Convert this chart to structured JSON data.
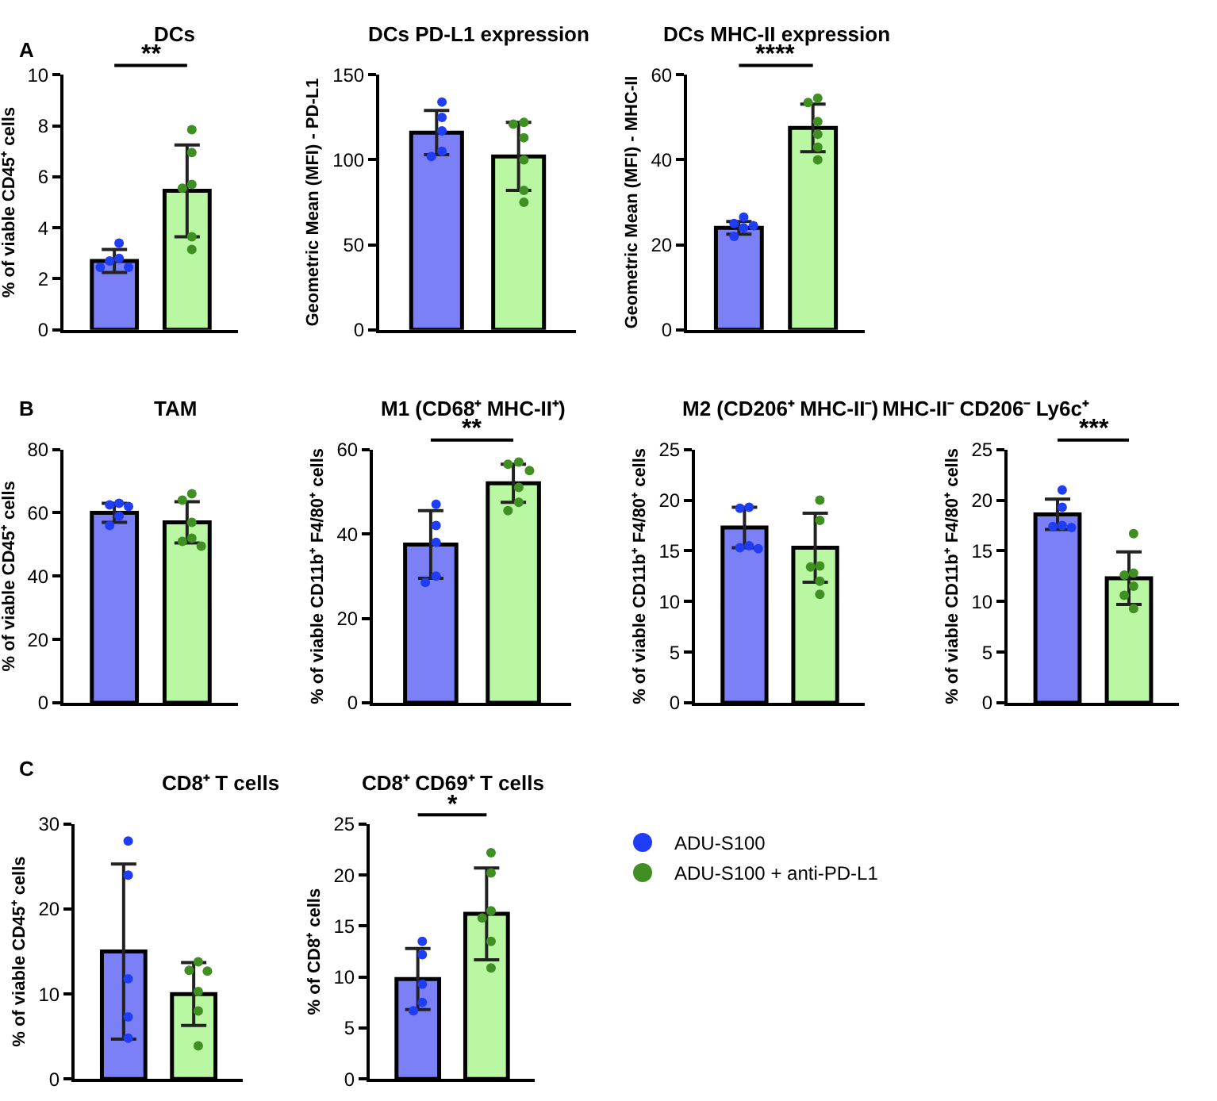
{
  "chart_data": [
    {
      "type": "bar",
      "title": "DCs",
      "ylabel": "% of viable CD45⁺ cells",
      "categories": [
        null,
        null
      ],
      "ylim": [
        0,
        10
      ],
      "yticks": [
        0,
        2,
        4,
        6,
        8,
        10
      ],
      "tick_labels": "y",
      "grid": false,
      "marker": "circle",
      "annotations": [
        "A",
        "**"
      ],
      "series": [
        {
          "type": "bar",
          "values": [
            2.7,
            5.45
          ],
          "errors": [
            0.45,
            1.8
          ],
          "colors": [
            "#7b80f7",
            "#b9f7a3"
          ]
        },
        {
          "type": "scatter",
          "color": "#1f3df5",
          "values": [
            3.4,
            null
          ]
        },
        {
          "type": "scatter",
          "color": "#1f3df5",
          "values": [
            2.8,
            null
          ]
        },
        {
          "type": "scatter",
          "color": "#1f3df5",
          "values": [
            2.7,
            null
          ]
        },
        {
          "type": "scatter",
          "color": "#1f3df5",
          "values": [
            2.45,
            null
          ]
        },
        {
          "type": "scatter",
          "color": "#1f3df5",
          "values": [
            2.45,
            null
          ]
        },
        {
          "type": "scatter",
          "color": "#3f8f22",
          "values": [
            null,
            7.85
          ]
        },
        {
          "type": "scatter",
          "color": "#3f8f22",
          "values": [
            null,
            6.95
          ]
        },
        {
          "type": "scatter",
          "color": "#3f8f22",
          "values": [
            null,
            5.7
          ]
        },
        {
          "type": "scatter",
          "color": "#3f8f22",
          "values": [
            null,
            5.55
          ]
        },
        {
          "type": "scatter",
          "color": "#3f8f22",
          "values": [
            null,
            3.65
          ]
        },
        {
          "type": "scatter",
          "color": "#3f8f22",
          "values": [
            null,
            3.15
          ]
        }
      ]
    },
    {
      "type": "bar",
      "title": "DCs PD-L1 expression",
      "ylabel": "Geometric Mean (MFI) - PD-L1",
      "categories": [
        null,
        null
      ],
      "ylim": [
        0,
        150
      ],
      "yticks": [
        0,
        50,
        100,
        150
      ],
      "tick_labels": "y",
      "grid": false,
      "marker": "circle",
      "series": [
        {
          "type": "bar",
          "values": [
            116,
            102
          ],
          "errors": [
            13,
            20
          ],
          "colors": [
            "#7b80f7",
            "#b9f7a3"
          ]
        },
        {
          "type": "scatter",
          "color": "#1f3df5",
          "values": [
            134,
            null
          ]
        },
        {
          "type": "scatter",
          "color": "#1f3df5",
          "values": [
            125,
            null
          ]
        },
        {
          "type": "scatter",
          "color": "#1f3df5",
          "values": [
            117,
            null
          ]
        },
        {
          "type": "scatter",
          "color": "#1f3df5",
          "values": [
            105,
            null
          ]
        },
        {
          "type": "scatter",
          "color": "#1f3df5",
          "values": [
            102,
            null
          ]
        },
        {
          "type": "scatter",
          "color": "#3f8f22",
          "values": [
            null,
            122
          ]
        },
        {
          "type": "scatter",
          "color": "#3f8f22",
          "values": [
            null,
            121
          ]
        },
        {
          "type": "scatter",
          "color": "#3f8f22",
          "values": [
            null,
            113
          ]
        },
        {
          "type": "scatter",
          "color": "#3f8f22",
          "values": [
            null,
            100
          ]
        },
        {
          "type": "scatter",
          "color": "#3f8f22",
          "values": [
            null,
            82
          ]
        },
        {
          "type": "scatter",
          "color": "#3f8f22",
          "values": [
            null,
            75
          ]
        }
      ]
    },
    {
      "type": "bar",
      "title": "DCs MHC-II expression",
      "ylabel": "Geometric Mean (MFI) - MHC-II",
      "categories": [
        null,
        null
      ],
      "ylim": [
        0,
        60
      ],
      "yticks": [
        0,
        20,
        40,
        60
      ],
      "tick_labels": "y",
      "grid": false,
      "marker": "circle",
      "annotations": [
        "****"
      ],
      "series": [
        {
          "type": "bar",
          "values": [
            24,
            47.5
          ],
          "errors": [
            1.5,
            5.6
          ],
          "colors": [
            "#7b80f7",
            "#b9f7a3"
          ]
        },
        {
          "type": "scatter",
          "color": "#1f3df5",
          "values": [
            26.5,
            null
          ]
        },
        {
          "type": "scatter",
          "color": "#1f3df5",
          "values": [
            25,
            null
          ]
        },
        {
          "type": "scatter",
          "color": "#1f3df5",
          "values": [
            24.5,
            null
          ]
        },
        {
          "type": "scatter",
          "color": "#1f3df5",
          "values": [
            24,
            null
          ]
        },
        {
          "type": "scatter",
          "color": "#1f3df5",
          "values": [
            22,
            null
          ]
        },
        {
          "type": "scatter",
          "color": "#3f8f22",
          "values": [
            null,
            54.5
          ]
        },
        {
          "type": "scatter",
          "color": "#3f8f22",
          "values": [
            null,
            53.5
          ]
        },
        {
          "type": "scatter",
          "color": "#3f8f22",
          "values": [
            null,
            49
          ]
        },
        {
          "type": "scatter",
          "color": "#3f8f22",
          "values": [
            null,
            46
          ]
        },
        {
          "type": "scatter",
          "color": "#3f8f22",
          "values": [
            null,
            43
          ]
        },
        {
          "type": "scatter",
          "color": "#3f8f22",
          "values": [
            null,
            40
          ]
        }
      ]
    },
    {
      "type": "bar",
      "title": "TAM",
      "ylabel": "% of viable CD45⁺ cells",
      "categories": [
        null,
        null
      ],
      "ylim": [
        0,
        80
      ],
      "yticks": [
        0,
        20,
        40,
        60,
        80
      ],
      "tick_labels": "y",
      "grid": false,
      "marker": "circle",
      "annotations": [
        "B"
      ],
      "series": [
        {
          "type": "bar",
          "values": [
            60,
            57
          ],
          "errors": [
            3,
            6.5
          ],
          "colors": [
            "#7b80f7",
            "#b9f7a3"
          ]
        },
        {
          "type": "scatter",
          "color": "#1f3df5",
          "values": [
            63,
            null
          ]
        },
        {
          "type": "scatter",
          "color": "#1f3df5",
          "values": [
            62.5,
            null
          ]
        },
        {
          "type": "scatter",
          "color": "#1f3df5",
          "values": [
            62,
            null
          ]
        },
        {
          "type": "scatter",
          "color": "#1f3df5",
          "values": [
            59,
            null
          ]
        },
        {
          "type": "scatter",
          "color": "#1f3df5",
          "values": [
            56,
            null
          ]
        },
        {
          "type": "scatter",
          "color": "#3f8f22",
          "values": [
            null,
            66
          ]
        },
        {
          "type": "scatter",
          "color": "#3f8f22",
          "values": [
            null,
            64
          ]
        },
        {
          "type": "scatter",
          "color": "#3f8f22",
          "values": [
            null,
            57
          ]
        },
        {
          "type": "scatter",
          "color": "#3f8f22",
          "values": [
            null,
            52
          ]
        },
        {
          "type": "scatter",
          "color": "#3f8f22",
          "values": [
            null,
            51
          ]
        },
        {
          "type": "scatter",
          "color": "#3f8f22",
          "values": [
            null,
            49.5
          ]
        }
      ]
    },
    {
      "type": "bar",
      "title": "M1 (CD68⁺ MHC-II⁺)",
      "ylabel": "% of viable CD11b⁺ F4/80⁺ cells",
      "categories": [
        null,
        null
      ],
      "ylim": [
        0,
        60
      ],
      "yticks": [
        0,
        20,
        40,
        60
      ],
      "tick_labels": "y",
      "grid": false,
      "marker": "circle",
      "annotations": [
        "**"
      ],
      "series": [
        {
          "type": "bar",
          "values": [
            37.5,
            52
          ],
          "errors": [
            8,
            4.5
          ],
          "colors": [
            "#7b80f7",
            "#b9f7a3"
          ]
        },
        {
          "type": "scatter",
          "color": "#1f3df5",
          "values": [
            47,
            null
          ]
        },
        {
          "type": "scatter",
          "color": "#1f3df5",
          "values": [
            42,
            null
          ]
        },
        {
          "type": "scatter",
          "color": "#1f3df5",
          "values": [
            38,
            null
          ]
        },
        {
          "type": "scatter",
          "color": "#1f3df5",
          "values": [
            30,
            null
          ]
        },
        {
          "type": "scatter",
          "color": "#1f3df5",
          "values": [
            28.5,
            null
          ]
        },
        {
          "type": "scatter",
          "color": "#3f8f22",
          "values": [
            null,
            57
          ]
        },
        {
          "type": "scatter",
          "color": "#3f8f22",
          "values": [
            null,
            56.5
          ]
        },
        {
          "type": "scatter",
          "color": "#3f8f22",
          "values": [
            null,
            55
          ]
        },
        {
          "type": "scatter",
          "color": "#3f8f22",
          "values": [
            null,
            51
          ]
        },
        {
          "type": "scatter",
          "color": "#3f8f22",
          "values": [
            null,
            47.5
          ]
        },
        {
          "type": "scatter",
          "color": "#3f8f22",
          "values": [
            null,
            45.5
          ]
        }
      ]
    },
    {
      "type": "bar",
      "title": "M2 (CD206⁺ MHC-II⁻)",
      "ylabel": "% of viable CD11b⁺ F4/80⁺ cells",
      "categories": [
        null,
        null
      ],
      "ylim": [
        0,
        25
      ],
      "yticks": [
        0,
        5,
        10,
        15,
        20,
        25
      ],
      "tick_labels": "y",
      "grid": false,
      "marker": "circle",
      "series": [
        {
          "type": "bar",
          "values": [
            17.3,
            15.3
          ],
          "errors": [
            2,
            3.4
          ],
          "colors": [
            "#7b80f7",
            "#b9f7a3"
          ]
        },
        {
          "type": "scatter",
          "color": "#1f3df5",
          "values": [
            19.3,
            null
          ]
        },
        {
          "type": "scatter",
          "color": "#1f3df5",
          "values": [
            19.2,
            null
          ]
        },
        {
          "type": "scatter",
          "color": "#1f3df5",
          "values": [
            15.5,
            null
          ]
        },
        {
          "type": "scatter",
          "color": "#1f3df5",
          "values": [
            15.3,
            null
          ]
        },
        {
          "type": "scatter",
          "color": "#1f3df5",
          "values": [
            15.2,
            null
          ]
        },
        {
          "type": "scatter",
          "color": "#3f8f22",
          "values": [
            null,
            20
          ]
        },
        {
          "type": "scatter",
          "color": "#3f8f22",
          "values": [
            null,
            18
          ]
        },
        {
          "type": "scatter",
          "color": "#3f8f22",
          "values": [
            null,
            13.5
          ]
        },
        {
          "type": "scatter",
          "color": "#3f8f22",
          "values": [
            null,
            13.4
          ]
        },
        {
          "type": "scatter",
          "color": "#3f8f22",
          "values": [
            null,
            12
          ]
        },
        {
          "type": "scatter",
          "color": "#3f8f22",
          "values": [
            null,
            10.7
          ]
        }
      ]
    },
    {
      "type": "bar",
      "title": "MHC-II⁻ CD206⁻ Ly6c⁺",
      "ylabel": "% of viable CD11b⁺ F4/80⁺ cells",
      "categories": [
        null,
        null
      ],
      "ylim": [
        0,
        25
      ],
      "yticks": [
        0,
        5,
        10,
        15,
        20,
        25
      ],
      "tick_labels": "y",
      "grid": false,
      "marker": "circle",
      "annotations": [
        "***"
      ],
      "series": [
        {
          "type": "bar",
          "values": [
            18.6,
            12.3
          ],
          "errors": [
            1.5,
            2.6
          ],
          "colors": [
            "#7b80f7",
            "#b9f7a3"
          ]
        },
        {
          "type": "scatter",
          "color": "#1f3df5",
          "values": [
            21,
            null
          ]
        },
        {
          "type": "scatter",
          "color": "#1f3df5",
          "values": [
            19.3,
            null
          ]
        },
        {
          "type": "scatter",
          "color": "#1f3df5",
          "values": [
            17.5,
            null
          ]
        },
        {
          "type": "scatter",
          "color": "#1f3df5",
          "values": [
            17.4,
            null
          ]
        },
        {
          "type": "scatter",
          "color": "#1f3df5",
          "values": [
            17.3,
            null
          ]
        },
        {
          "type": "scatter",
          "color": "#3f8f22",
          "values": [
            null,
            16.7
          ]
        },
        {
          "type": "scatter",
          "color": "#3f8f22",
          "values": [
            null,
            12.8
          ]
        },
        {
          "type": "scatter",
          "color": "#3f8f22",
          "values": [
            null,
            12.6
          ]
        },
        {
          "type": "scatter",
          "color": "#3f8f22",
          "values": [
            null,
            11.5
          ]
        },
        {
          "type": "scatter",
          "color": "#3f8f22",
          "values": [
            null,
            10.6
          ]
        },
        {
          "type": "scatter",
          "color": "#3f8f22",
          "values": [
            null,
            9.3
          ]
        }
      ]
    },
    {
      "type": "bar",
      "title": "CD8⁺ T cells",
      "ylabel": "% of viable CD45⁺ cells",
      "categories": [
        null,
        null
      ],
      "ylim": [
        0,
        30
      ],
      "yticks": [
        0,
        10,
        20,
        30
      ],
      "tick_labels": "y",
      "grid": false,
      "marker": "circle",
      "annotations": [
        "C"
      ],
      "series": [
        {
          "type": "bar",
          "values": [
            15,
            10
          ],
          "errors": [
            10.3,
            3.7
          ],
          "colors": [
            "#7b80f7",
            "#b9f7a3"
          ]
        },
        {
          "type": "scatter",
          "color": "#1f3df5",
          "values": [
            28,
            null
          ]
        },
        {
          "type": "scatter",
          "color": "#1f3df5",
          "values": [
            24,
            null
          ]
        },
        {
          "type": "scatter",
          "color": "#1f3df5",
          "values": [
            11.8,
            null
          ]
        },
        {
          "type": "scatter",
          "color": "#1f3df5",
          "values": [
            7.3,
            null
          ]
        },
        {
          "type": "scatter",
          "color": "#1f3df5",
          "values": [
            4.8,
            null
          ]
        },
        {
          "type": "scatter",
          "color": "#3f8f22",
          "values": [
            null,
            13.8
          ]
        },
        {
          "type": "scatter",
          "color": "#3f8f22",
          "values": [
            null,
            12.8
          ]
        },
        {
          "type": "scatter",
          "color": "#3f8f22",
          "values": [
            null,
            12.7
          ]
        },
        {
          "type": "scatter",
          "color": "#3f8f22",
          "values": [
            null,
            10.3
          ]
        },
        {
          "type": "scatter",
          "color": "#3f8f22",
          "values": [
            null,
            8
          ]
        },
        {
          "type": "scatter",
          "color": "#3f8f22",
          "values": [
            null,
            3.9
          ]
        }
      ]
    },
    {
      "type": "bar",
      "title": "CD8⁺ CD69⁺ T cells",
      "ylabel": "% of CD8⁺ cells",
      "categories": [
        null,
        null
      ],
      "ylim": [
        0,
        25
      ],
      "yticks": [
        0,
        5,
        10,
        15,
        20,
        25
      ],
      "tick_labels": "y",
      "grid": false,
      "marker": "circle",
      "annotations": [
        "*"
      ],
      "series": [
        {
          "type": "bar",
          "values": [
            9.8,
            16.2
          ],
          "errors": [
            3,
            4.5
          ],
          "colors": [
            "#7b80f7",
            "#b9f7a3"
          ]
        },
        {
          "type": "scatter",
          "color": "#1f3df5",
          "values": [
            13.5,
            null
          ]
        },
        {
          "type": "scatter",
          "color": "#1f3df5",
          "values": [
            12.2,
            null
          ]
        },
        {
          "type": "scatter",
          "color": "#1f3df5",
          "values": [
            9.3,
            null
          ]
        },
        {
          "type": "scatter",
          "color": "#1f3df5",
          "values": [
            7.5,
            null
          ]
        },
        {
          "type": "scatter",
          "color": "#1f3df5",
          "values": [
            6.7,
            null
          ]
        },
        {
          "type": "scatter",
          "color": "#3f8f22",
          "values": [
            null,
            22.2
          ]
        },
        {
          "type": "scatter",
          "color": "#3f8f22",
          "values": [
            null,
            20.2
          ]
        },
        {
          "type": "scatter",
          "color": "#3f8f22",
          "values": [
            null,
            16.5
          ]
        },
        {
          "type": "scatter",
          "color": "#3f8f22",
          "values": [
            null,
            15.8
          ]
        },
        {
          "type": "scatter",
          "color": "#3f8f22",
          "values": [
            null,
            13.5
          ]
        },
        {
          "type": "scatter",
          "color": "#3f8f22",
          "values": [
            null,
            10.9
          ]
        }
      ]
    },
    {
      "type": "other",
      "legend": "top left",
      "series": [
        {
          "name": "ADU-S100",
          "color": "#1f3df5"
        },
        {
          "name": "ADU-S100 + anti-PD-L1",
          "color": "#3f8f22"
        }
      ]
    }
  ]
}
